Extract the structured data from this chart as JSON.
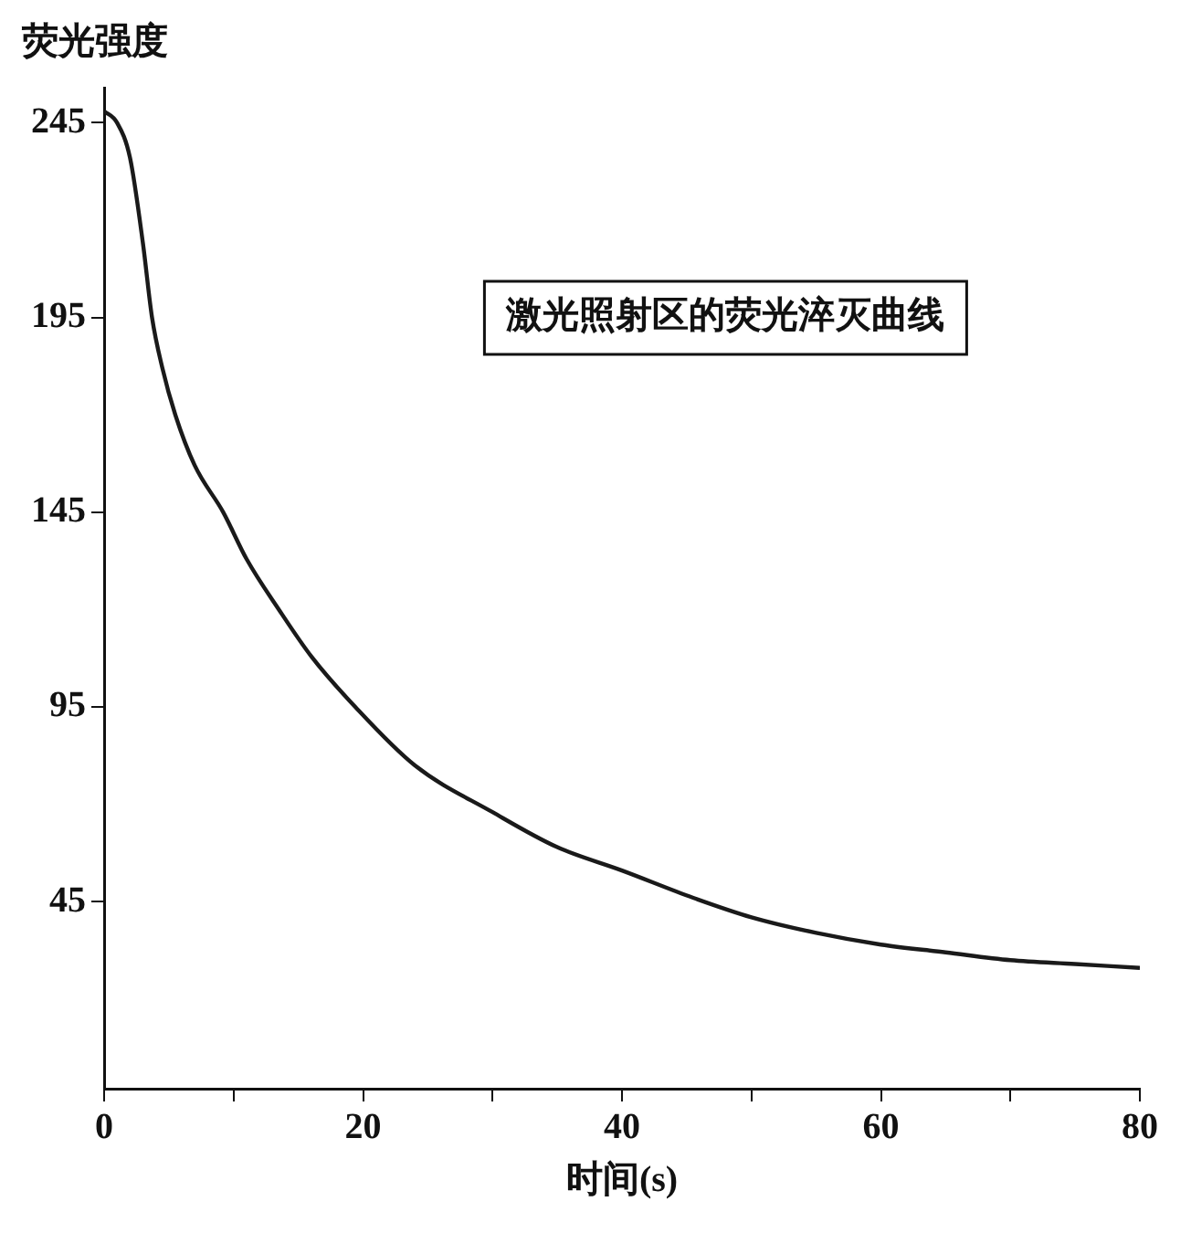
{
  "chart_data": {
    "type": "line",
    "xlabel": "时间(s)",
    "ylabel": "荧光强度",
    "annotations": [
      "激光照射区的荧光淬灭曲线"
    ],
    "x": [
      0,
      1,
      2,
      3,
      3.7,
      4.5,
      5.5,
      7,
      9.2,
      11,
      13.5,
      16,
      19.4,
      24,
      30,
      35,
      40,
      45.5,
      50,
      55,
      60,
      65,
      70,
      75,
      80
    ],
    "series": [
      {
        "color": "#1a1a1a",
        "values": [
          248,
          245,
          236,
          214,
          195,
          182,
          170,
          157,
          145,
          133,
          120,
          108,
          95,
          80,
          68,
          59,
          53,
          46,
          41,
          37,
          34,
          32,
          30,
          29,
          28
        ]
      }
    ],
    "xlim": [
      0,
      80
    ],
    "ylim": [
      -3,
      254
    ],
    "xticks": [
      0,
      {
        "value": 10,
        "label": null
      },
      20,
      {
        "value": 30,
        "label": null
      },
      40,
      {
        "value": 50,
        "label": null
      },
      60,
      {
        "value": 70,
        "label": null
      },
      80
    ],
    "yticks": [
      45,
      95,
      145,
      195,
      245
    ],
    "grid": false,
    "legend": false,
    "marker": "none",
    "line_style": "solid"
  }
}
